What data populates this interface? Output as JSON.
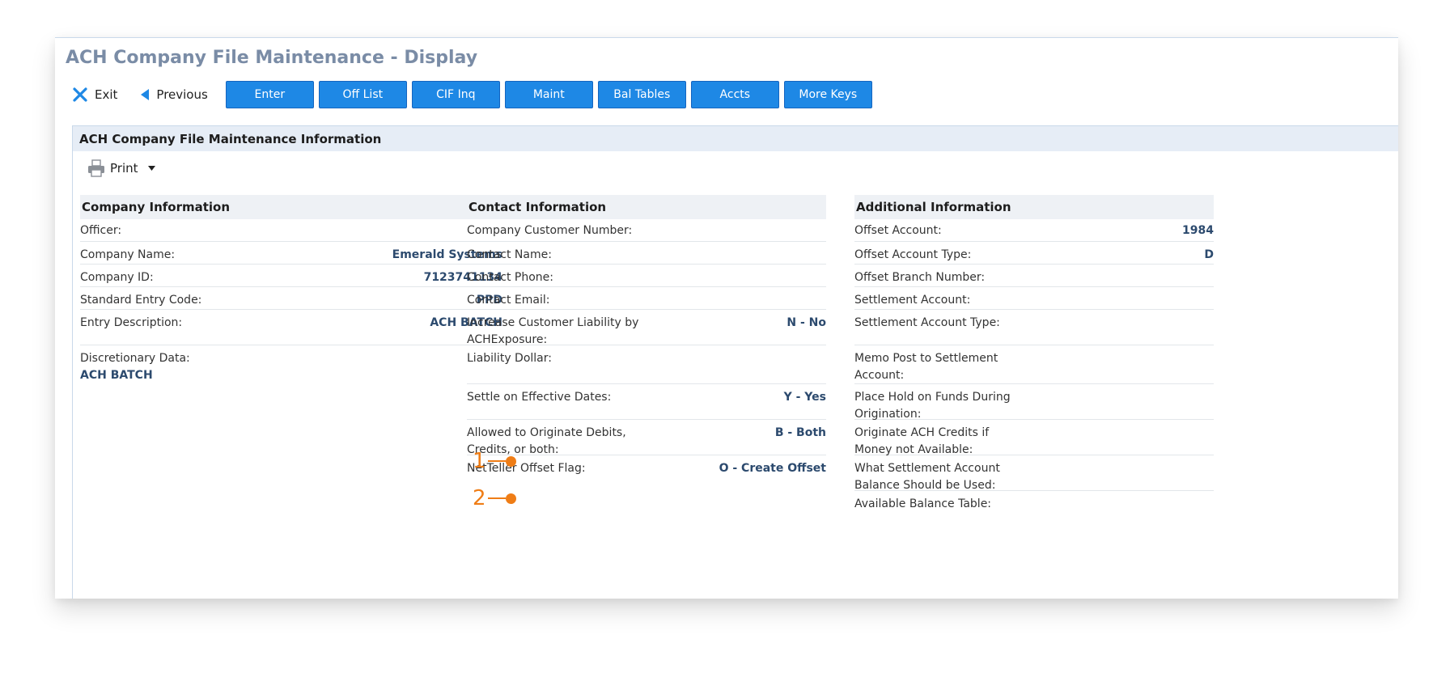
{
  "page": {
    "title": "ACH Company File Maintenance - Display"
  },
  "toolbar": {
    "exit_label": "Exit",
    "previous_label": "Previous",
    "buttons": [
      "Enter",
      "Off List",
      "CIF Inq",
      "Maint",
      "Bal Tables",
      "Accts",
      "More Keys"
    ]
  },
  "panel": {
    "title": "ACH Company File Maintenance Information",
    "print_label": "Print"
  },
  "company": {
    "heading": "Company Information",
    "officer": {
      "label": "Officer:",
      "value": ""
    },
    "name": {
      "label": "Company Name:",
      "value": "Emerald Systems"
    },
    "id": {
      "label": "Company ID:",
      "value": "7123741134"
    },
    "sec": {
      "label": "Standard Entry Code:",
      "value": "PPD"
    },
    "desc": {
      "label": "Entry Description:",
      "value": "ACH BATCH"
    },
    "disc": {
      "label": "Discretionary Data:",
      "value": "ACH BATCH"
    }
  },
  "contact": {
    "heading": "Contact Information",
    "cust_num": {
      "label": "Company Customer Number:",
      "value": ""
    },
    "name": {
      "label": "Contact Name:",
      "value": ""
    },
    "phone": {
      "label": "Contact Phone:",
      "value": ""
    },
    "email": {
      "label": "Contact Email:",
      "value": ""
    },
    "liability": {
      "label": "Increase Customer Liability by ACHExposure:",
      "value": "N - No"
    },
    "liab_dollar": {
      "label": "Liability Dollar:",
      "value": ""
    },
    "settle": {
      "label": "Settle on Effective Dates:",
      "value": "Y - Yes"
    },
    "originate": {
      "label": "Allowed to Originate Debits, Credits, or both:",
      "value": "B - Both"
    },
    "netteller": {
      "label": "NetTeller Offset Flag:",
      "value": "O - Create Offset"
    }
  },
  "additional": {
    "heading": "Additional Information",
    "offset_acct": {
      "label": "Offset Account:",
      "value": "1984"
    },
    "offset_type": {
      "label": "Offset Account Type:",
      "value": "D"
    },
    "offset_branch": {
      "label": "Offset Branch Number:",
      "value": ""
    },
    "settle_acct": {
      "label": "Settlement Account:",
      "value": ""
    },
    "settle_type": {
      "label": "Settlement Account Type:",
      "value": ""
    },
    "memo_post": {
      "label": "Memo Post to Settlement Account:",
      "value": ""
    },
    "hold_funds": {
      "label": "Place Hold on Funds During Origination:",
      "value": ""
    },
    "orig_credits": {
      "label": "Originate ACH Credits if Money not Available:",
      "value": ""
    },
    "which_balance": {
      "label": "What Settlement Account Balance Should be Used:",
      "value": ""
    },
    "avail_table": {
      "label": "Available Balance Table:",
      "value": ""
    }
  },
  "callouts": [
    "1",
    "2"
  ],
  "colors": {
    "accent_button": "#1e88e5",
    "title": "#7a8ca6",
    "value_text": "#2c4a6e",
    "callout": "#ef7d16"
  }
}
